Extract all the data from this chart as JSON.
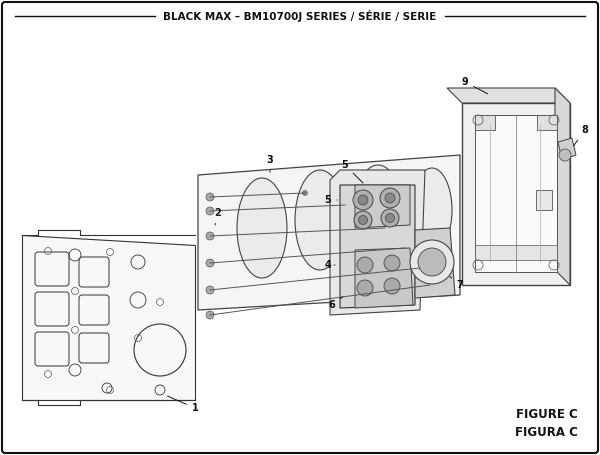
{
  "title": "BLACK MAX – BM10700J SERIES / SÉRIE / SERIE",
  "figure_label": "FIGURE C",
  "figura_label": "FIGURA C",
  "bg_color": "#ffffff",
  "border_color": "#000000",
  "line_color": "#1a1a1a",
  "title_fontsize": 7.5,
  "label_fontsize": 7.0,
  "figure_label_fontsize": 8.5
}
